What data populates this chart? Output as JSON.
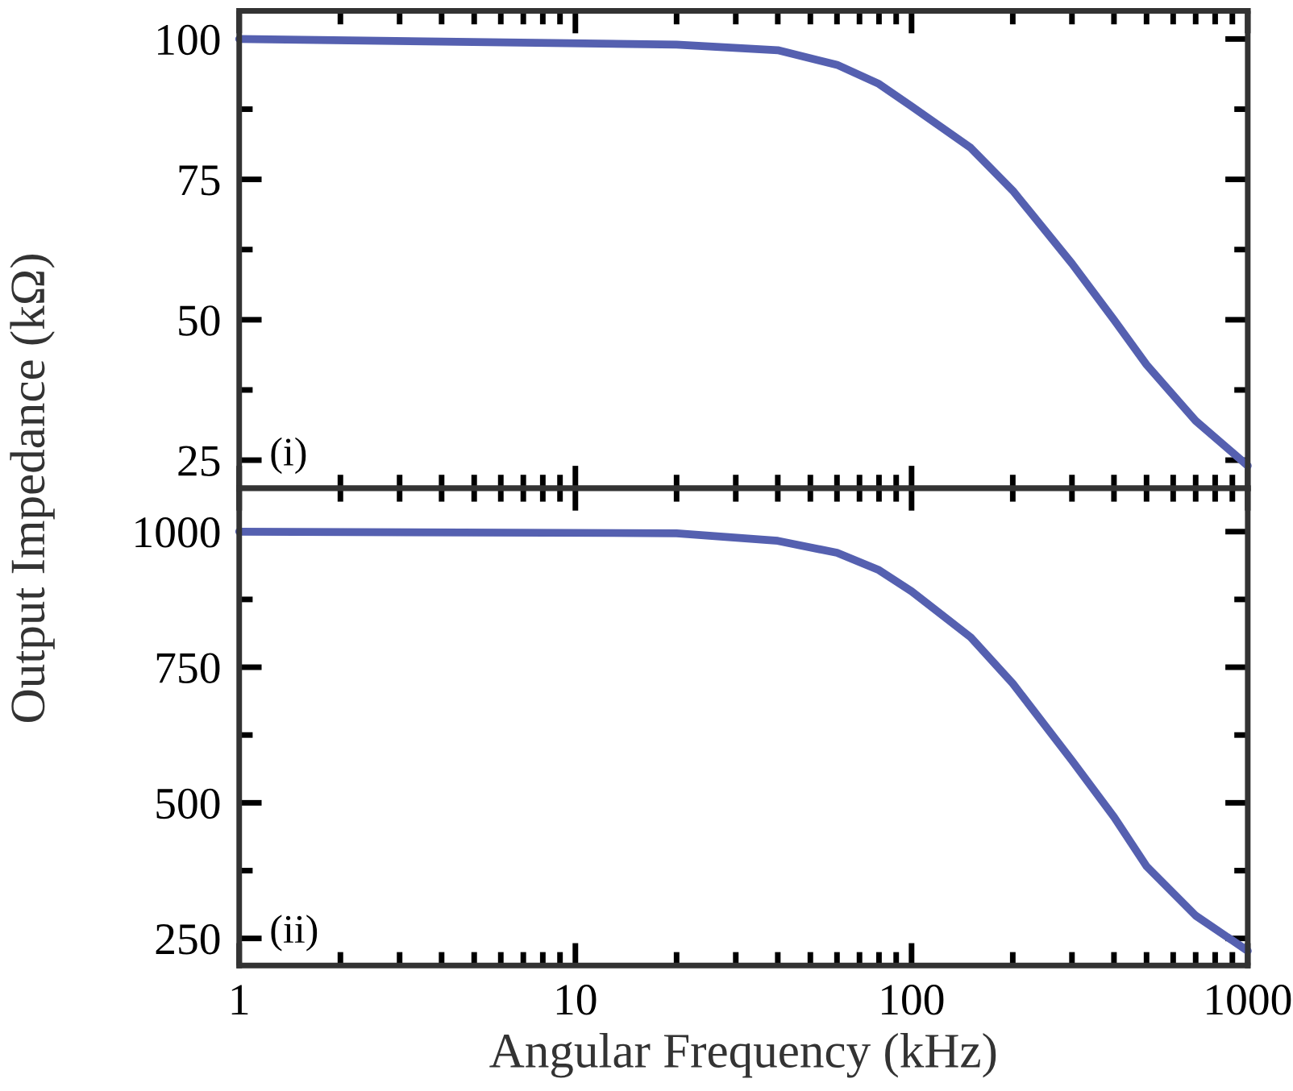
{
  "chart_data": [
    {
      "type": "line",
      "ylabel": "Output Impedance (kΩ)",
      "log": "x",
      "xlim": [
        1,
        1000
      ],
      "xticks": [
        1,
        10,
        100,
        1000
      ],
      "ylim": [
        20,
        105
      ],
      "yticks": [
        25,
        50,
        75,
        100
      ],
      "tick_labels": "y",
      "annotations": [
        "(i)"
      ],
      "x": [
        1,
        20,
        40,
        60,
        80,
        100,
        150,
        200,
        300,
        400,
        500,
        700,
        1000
      ],
      "series": [
        {
          "color": "#5560b0",
          "values": [
            100,
            99,
            98,
            95.4,
            92,
            88,
            80.6,
            73,
            60,
            50,
            42,
            32,
            24
          ]
        }
      ]
    },
    {
      "type": "line",
      "xlabel": "Angular Frequency (kHz)",
      "log": "x",
      "xlim": [
        1,
        1000
      ],
      "xticks": [
        1,
        10,
        100,
        1000
      ],
      "ylim": [
        200,
        1080
      ],
      "yticks": [
        250,
        500,
        750,
        1000
      ],
      "annotations": [
        "(ii)"
      ],
      "x": [
        1,
        20,
        40,
        60,
        80,
        100,
        150,
        200,
        300,
        400,
        500,
        700,
        1000
      ],
      "series": [
        {
          "color": "#5560b0",
          "values": [
            1000,
            997,
            983,
            961,
            929,
            890,
            805,
            720,
            578,
            474,
            383,
            292,
            227
          ]
        }
      ]
    }
  ]
}
